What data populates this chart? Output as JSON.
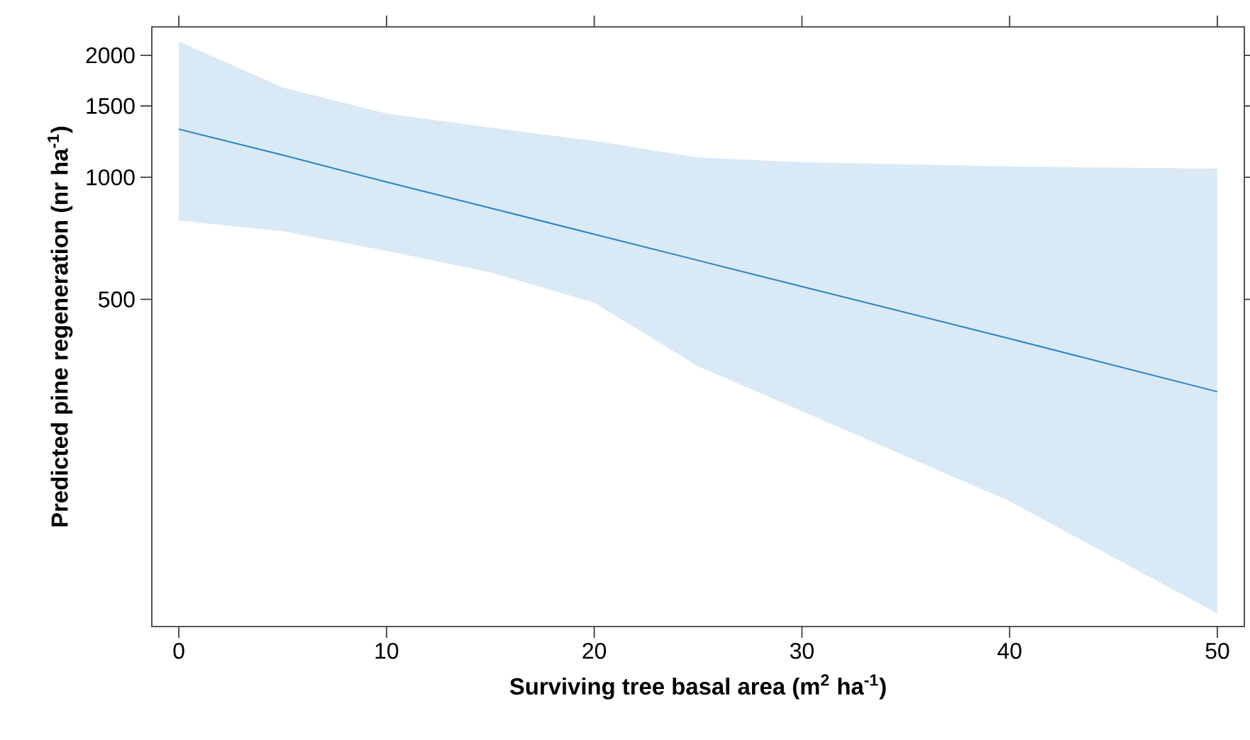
{
  "chart_data": {
    "type": "line",
    "xlabel": "Surviving tree basal area (m$^{2}$ ha$^{-1}$)",
    "ylabel": "Predicted pine regeneration (nr ha$^{-1}$)",
    "log": "y",
    "xlim": [
      -1.3,
      51.3
    ],
    "ylim": [
      78,
      2350
    ],
    "xticks": [
      0,
      10,
      20,
      30,
      40,
      50
    ],
    "yticks": [
      500,
      1000,
      1500,
      2000
    ],
    "grid": false,
    "legend": false,
    "marker": "none",
    "line_style": "solid",
    "series": [
      {
        "color": "#2b83c6",
        "x": [
          0,
          5,
          10,
          15,
          20,
          25,
          30,
          40,
          50
        ],
        "values": [
          1315,
          1135,
          974,
          840,
          724,
          624,
          538,
          400,
          296
        ],
        "lower": [
          783,
          736,
          659,
          583,
          491,
          342,
          265,
          159,
          84
        ],
        "upper": [
          2162,
          1665,
          1437,
          1326,
          1230,
          1119,
          1090,
          1064,
          1050
        ]
      }
    ]
  }
}
